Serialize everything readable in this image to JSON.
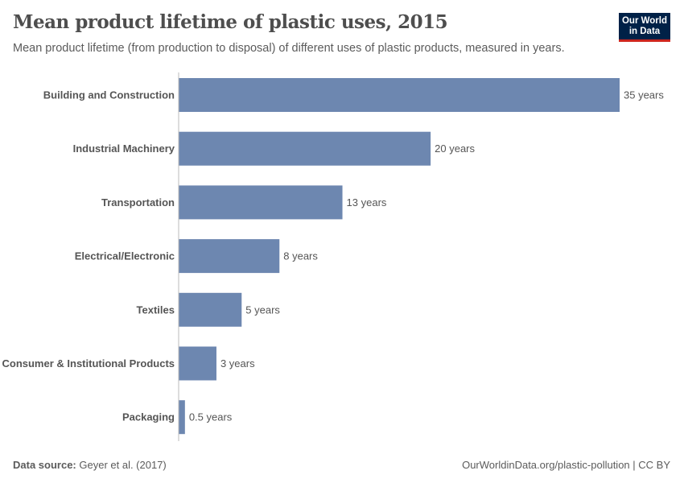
{
  "header": {
    "title": "Mean product lifetime of plastic uses, 2015",
    "subtitle": "Mean product lifetime (from production to disposal) of different uses of plastic products, measured in years."
  },
  "logo": {
    "line1": "Our World",
    "line2": "in Data",
    "bg_color": "#002147",
    "accent_color": "#ce261e"
  },
  "footer": {
    "source_label": "Data source:",
    "source_value": "Geyer et al. (2017)",
    "link": "OurWorldinData.org/plastic-pollution | CC BY"
  },
  "chart_data": {
    "type": "bar",
    "orientation": "horizontal",
    "categories": [
      "Building and Construction",
      "Industrial Machinery",
      "Transportation",
      "Electrical/Electronic",
      "Textiles",
      "Consumer & Institutional Products",
      "Packaging"
    ],
    "values": [
      35,
      20,
      13,
      8,
      5,
      3,
      0.5
    ],
    "data_labels": [
      "35 years",
      "20 years",
      "13 years",
      "8 years",
      "5 years",
      "3 years",
      "0.5 years"
    ],
    "unit": "years",
    "xlim": [
      0,
      35
    ],
    "grid": false,
    "bar_color": "#6d87b0"
  }
}
